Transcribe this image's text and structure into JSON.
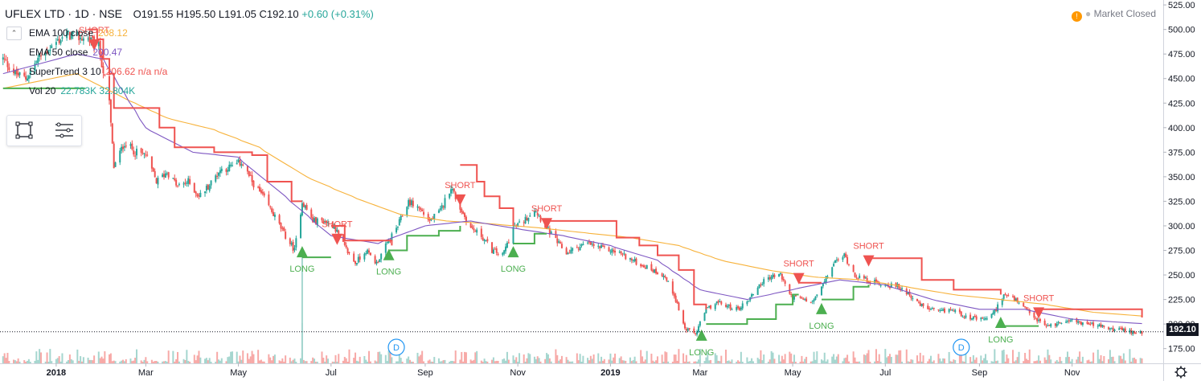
{
  "header": {
    "symbol": "UFLEX LTD · 1D · NSE",
    "ohlc": "O191.55 H195.50 L191.05 C192.10",
    "change": "+0.60 (+0.31%)"
  },
  "legend": [
    {
      "label": "EMA 100 close",
      "value": "208.12",
      "color": "#f7b23b"
    },
    {
      "label": "EMA 50 close",
      "value": "200.47",
      "color": "#7e57c2"
    },
    {
      "label": "SuperTrend 3 10",
      "value": "206.62  n/a  n/a",
      "color": "#ef5350"
    },
    {
      "label": "Vol 20",
      "value": "22.783K  32.804K",
      "color": "#26a69a"
    }
  ],
  "collapse_icon": "chevron-up-icon",
  "toolbox_icons": [
    "rectangle-select-icon",
    "list-lines-icon"
  ],
  "market_status": "Market Closed",
  "market_icon": "exclamation-icon",
  "last_price": "192.10",
  "settings_icon": "gear-icon",
  "colors": {
    "up": "#26a69a",
    "down": "#ef5350",
    "ema100": "#f7b23b",
    "ema50": "#7e57c2",
    "st_long": "#4caf50",
    "st_short": "#ef5350",
    "vol_up": "#a5d6cf",
    "vol_down": "#f7a9a7"
  },
  "chart_data": {
    "type": "candlestick",
    "title": "UFLEX LTD · 1D · NSE",
    "x_tick_labels": [
      "2018",
      "Mar",
      "May",
      "Jul",
      "Sep",
      "Nov",
      "2019",
      "Mar",
      "May",
      "Jul",
      "Sep",
      "Nov"
    ],
    "y_tick_labels": [
      "175.00",
      "200.00",
      "225.00",
      "250.00",
      "275.00",
      "300.00",
      "325.00",
      "350.00",
      "375.00",
      "400.00",
      "425.00",
      "450.00",
      "475.00",
      "500.00",
      "525.00"
    ],
    "ylim": [
      160,
      530
    ],
    "x_range": [
      "2017-11-25",
      "2019-12-31"
    ],
    "close_path": [
      [
        "2017-11-27",
        470
      ],
      [
        "2017-12-05",
        455
      ],
      [
        "2017-12-12",
        450
      ],
      [
        "2017-12-20",
        470
      ],
      [
        "2018-01-01",
        487
      ],
      [
        "2018-01-08",
        495
      ],
      [
        "2018-01-15",
        492
      ],
      [
        "2018-01-22",
        490
      ],
      [
        "2018-01-29",
        482
      ],
      [
        "2018-02-05",
        425
      ],
      [
        "2018-02-08",
        360
      ],
      [
        "2018-02-15",
        385
      ],
      [
        "2018-02-22",
        375
      ],
      [
        "2018-03-01",
        372
      ],
      [
        "2018-03-08",
        345
      ],
      [
        "2018-03-15",
        355
      ],
      [
        "2018-03-22",
        340
      ],
      [
        "2018-03-29",
        345
      ],
      [
        "2018-04-05",
        330
      ],
      [
        "2018-04-12",
        342
      ],
      [
        "2018-04-19",
        357
      ],
      [
        "2018-04-26",
        360
      ],
      [
        "2018-05-03",
        365
      ],
      [
        "2018-05-10",
        345
      ],
      [
        "2018-05-17",
        330
      ],
      [
        "2018-05-24",
        312
      ],
      [
        "2018-05-31",
        292
      ],
      [
        "2018-06-07",
        275
      ],
      [
        "2018-06-12",
        325
      ],
      [
        "2018-06-19",
        305
      ],
      [
        "2018-06-26",
        305
      ],
      [
        "2018-07-03",
        300
      ],
      [
        "2018-07-10",
        278
      ],
      [
        "2018-07-17",
        262
      ],
      [
        "2018-07-24",
        275
      ],
      [
        "2018-07-31",
        262
      ],
      [
        "2018-08-07",
        282
      ],
      [
        "2018-08-14",
        300
      ],
      [
        "2018-08-21",
        325
      ],
      [
        "2018-08-28",
        318
      ],
      [
        "2018-09-04",
        305
      ],
      [
        "2018-09-11",
        315
      ],
      [
        "2018-09-18",
        340
      ],
      [
        "2018-09-24",
        318
      ],
      [
        "2018-10-01",
        298
      ],
      [
        "2018-10-08",
        290
      ],
      [
        "2018-10-15",
        275
      ],
      [
        "2018-10-22",
        270
      ],
      [
        "2018-10-29",
        298
      ],
      [
        "2018-11-05",
        305
      ],
      [
        "2018-11-12",
        318
      ],
      [
        "2018-11-19",
        300
      ],
      [
        "2018-11-26",
        285
      ],
      [
        "2018-12-03",
        272
      ],
      [
        "2018-12-10",
        278
      ],
      [
        "2018-12-17",
        282
      ],
      [
        "2018-12-24",
        278
      ],
      [
        "2019-01-01",
        275
      ],
      [
        "2019-01-08",
        272
      ],
      [
        "2019-01-15",
        265
      ],
      [
        "2019-01-22",
        260
      ],
      [
        "2019-01-29",
        255
      ],
      [
        "2019-02-05",
        250
      ],
      [
        "2019-02-12",
        230
      ],
      [
        "2019-02-19",
        195
      ],
      [
        "2019-02-26",
        190
      ],
      [
        "2019-03-05",
        215
      ],
      [
        "2019-03-12",
        222
      ],
      [
        "2019-03-19",
        218
      ],
      [
        "2019-03-26",
        215
      ],
      [
        "2019-04-02",
        225
      ],
      [
        "2019-04-09",
        240
      ],
      [
        "2019-04-16",
        248
      ],
      [
        "2019-04-23",
        250
      ],
      [
        "2019-04-30",
        228
      ],
      [
        "2019-05-07",
        225
      ],
      [
        "2019-05-14",
        222
      ],
      [
        "2019-05-21",
        240
      ],
      [
        "2019-05-28",
        262
      ],
      [
        "2019-06-04",
        270
      ],
      [
        "2019-06-11",
        250
      ],
      [
        "2019-06-18",
        245
      ],
      [
        "2019-06-25",
        242
      ],
      [
        "2019-07-02",
        240
      ],
      [
        "2019-07-09",
        238
      ],
      [
        "2019-07-16",
        232
      ],
      [
        "2019-07-23",
        220
      ],
      [
        "2019-07-30",
        215
      ],
      [
        "2019-08-06",
        212
      ],
      [
        "2019-08-13",
        215
      ],
      [
        "2019-08-20",
        210
      ],
      [
        "2019-08-27",
        206
      ],
      [
        "2019-09-03",
        204
      ],
      [
        "2019-09-10",
        210
      ],
      [
        "2019-09-17",
        230
      ],
      [
        "2019-09-24",
        225
      ],
      [
        "2019-10-01",
        215
      ],
      [
        "2019-10-08",
        205
      ],
      [
        "2019-10-15",
        198
      ],
      [
        "2019-10-22",
        200
      ],
      [
        "2019-10-29",
        205
      ],
      [
        "2019-11-05",
        202
      ],
      [
        "2019-11-12",
        200
      ],
      [
        "2019-11-19",
        198
      ],
      [
        "2019-11-26",
        195
      ],
      [
        "2019-12-03",
        194
      ],
      [
        "2019-12-10",
        192
      ],
      [
        "2019-12-17",
        192
      ]
    ],
    "ema100_path": [
      [
        "2017-11-27",
        440
      ],
      [
        "2018-01-15",
        455
      ],
      [
        "2018-02-15",
        430
      ],
      [
        "2018-03-15",
        410
      ],
      [
        "2018-04-15",
        398
      ],
      [
        "2018-05-15",
        380
      ],
      [
        "2018-06-15",
        350
      ],
      [
        "2018-07-15",
        330
      ],
      [
        "2018-08-15",
        312
      ],
      [
        "2018-09-15",
        305
      ],
      [
        "2018-10-15",
        302
      ],
      [
        "2018-11-15",
        298
      ],
      [
        "2018-12-15",
        293
      ],
      [
        "2019-01-15",
        288
      ],
      [
        "2019-02-15",
        280
      ],
      [
        "2019-03-15",
        265
      ],
      [
        "2019-04-15",
        255
      ],
      [
        "2019-05-15",
        248
      ],
      [
        "2019-06-15",
        245
      ],
      [
        "2019-07-15",
        238
      ],
      [
        "2019-08-15",
        230
      ],
      [
        "2019-09-15",
        225
      ],
      [
        "2019-10-15",
        220
      ],
      [
        "2019-11-15",
        212
      ],
      [
        "2019-12-17",
        208.12
      ]
    ],
    "ema50_path": [
      [
        "2017-11-27",
        455
      ],
      [
        "2018-01-15",
        475
      ],
      [
        "2018-02-01",
        470
      ],
      [
        "2018-03-01",
        400
      ],
      [
        "2018-04-01",
        375
      ],
      [
        "2018-05-01",
        370
      ],
      [
        "2018-06-01",
        330
      ],
      [
        "2018-07-01",
        290
      ],
      [
        "2018-08-01",
        282
      ],
      [
        "2018-09-01",
        300
      ],
      [
        "2018-10-01",
        305
      ],
      [
        "2018-11-01",
        297
      ],
      [
        "2018-12-01",
        290
      ],
      [
        "2019-01-01",
        280
      ],
      [
        "2019-02-01",
        265
      ],
      [
        "2019-03-01",
        235
      ],
      [
        "2019-04-01",
        225
      ],
      [
        "2019-05-01",
        235
      ],
      [
        "2019-06-01",
        245
      ],
      [
        "2019-07-01",
        240
      ],
      [
        "2019-08-01",
        225
      ],
      [
        "2019-09-01",
        215
      ],
      [
        "2019-10-01",
        215
      ],
      [
        "2019-11-01",
        205
      ],
      [
        "2019-12-17",
        200.47
      ]
    ],
    "supertrend_segments": [
      {
        "dir": "long",
        "points": [
          [
            "2017-11-27",
            440
          ],
          [
            "2018-01-20",
            440
          ]
        ]
      },
      {
        "dir": "short",
        "points": [
          [
            "2018-01-22",
            500
          ],
          [
            "2018-01-28",
            490
          ],
          [
            "2018-02-01",
            470
          ],
          [
            "2018-02-05",
            455
          ],
          [
            "2018-02-08",
            420
          ],
          [
            "2018-03-10",
            400
          ],
          [
            "2018-03-20",
            380
          ],
          [
            "2018-04-15",
            375
          ],
          [
            "2018-05-10",
            372
          ],
          [
            "2018-05-20",
            345
          ],
          [
            "2018-06-05",
            325
          ],
          [
            "2018-06-12",
            325
          ]
        ]
      },
      {
        "dir": "long",
        "points": [
          [
            "2018-06-12",
            268
          ],
          [
            "2018-07-01",
            268
          ]
        ]
      },
      {
        "dir": "short",
        "points": [
          [
            "2018-07-01",
            300
          ],
          [
            "2018-07-10",
            285
          ],
          [
            "2018-08-10",
            280
          ]
        ]
      },
      {
        "dir": "long",
        "points": [
          [
            "2018-08-08",
            275
          ],
          [
            "2018-08-20",
            290
          ],
          [
            "2018-09-10",
            295
          ],
          [
            "2018-09-24",
            300
          ]
        ]
      },
      {
        "dir": "short",
        "points": [
          [
            "2018-09-24",
            362
          ],
          [
            "2018-10-05",
            345
          ],
          [
            "2018-10-10",
            330
          ],
          [
            "2018-10-20",
            318
          ],
          [
            "2018-10-29",
            300
          ]
        ]
      },
      {
        "dir": "long",
        "points": [
          [
            "2018-10-29",
            282
          ],
          [
            "2018-11-12",
            292
          ],
          [
            "2018-11-20",
            292
          ]
        ]
      },
      {
        "dir": "short",
        "points": [
          [
            "2018-11-20",
            305
          ],
          [
            "2018-12-20",
            305
          ],
          [
            "2019-01-05",
            288
          ],
          [
            "2019-01-20",
            280
          ],
          [
            "2019-02-01",
            270
          ],
          [
            "2019-02-15",
            255
          ],
          [
            "2019-02-25",
            220
          ],
          [
            "2019-03-05",
            215
          ]
        ]
      },
      {
        "dir": "long",
        "points": [
          [
            "2019-03-05",
            200
          ],
          [
            "2019-04-01",
            205
          ],
          [
            "2019-04-20",
            220
          ],
          [
            "2019-05-01",
            230
          ],
          [
            "2019-05-05",
            230
          ]
        ]
      },
      {
        "dir": "short",
        "points": [
          [
            "2019-05-05",
            242
          ],
          [
            "2019-05-20",
            242
          ]
        ]
      },
      {
        "dir": "long",
        "points": [
          [
            "2019-05-20",
            225
          ],
          [
            "2019-06-10",
            238
          ],
          [
            "2019-06-20",
            240
          ]
        ]
      },
      {
        "dir": "short",
        "points": [
          [
            "2019-06-20",
            267
          ],
          [
            "2019-07-15",
            267
          ],
          [
            "2019-07-25",
            245
          ],
          [
            "2019-08-15",
            235
          ],
          [
            "2019-09-15",
            230
          ]
        ]
      },
      {
        "dir": "long",
        "points": [
          [
            "2019-09-15",
            198
          ],
          [
            "2019-10-10",
            198
          ]
        ]
      },
      {
        "dir": "short",
        "points": [
          [
            "2019-10-10",
            215
          ],
          [
            "2019-12-17",
            206.62
          ]
        ]
      }
    ],
    "signals": [
      {
        "type": "SHORT",
        "date": "2018-01-26",
        "price": 490
      },
      {
        "type": "LONG",
        "date": "2018-06-12",
        "price": 268
      },
      {
        "type": "SHORT",
        "date": "2018-07-05",
        "price": 292
      },
      {
        "type": "LONG",
        "date": "2018-08-08",
        "price": 265
      },
      {
        "type": "SHORT",
        "date": "2018-09-24",
        "price": 332
      },
      {
        "type": "LONG",
        "date": "2018-10-29",
        "price": 268
      },
      {
        "type": "SHORT",
        "date": "2018-11-20",
        "price": 308
      },
      {
        "type": "LONG",
        "date": "2019-03-02",
        "price": 183
      },
      {
        "type": "SHORT",
        "date": "2019-05-05",
        "price": 252
      },
      {
        "type": "LONG",
        "date": "2019-05-20",
        "price": 210
      },
      {
        "type": "SHORT",
        "date": "2019-06-20",
        "price": 270
      },
      {
        "type": "LONG",
        "date": "2019-09-15",
        "price": 196
      },
      {
        "type": "SHORT",
        "date": "2019-10-10",
        "price": 217
      }
    ],
    "dividend_markers": [
      {
        "label": "D",
        "date": "2018-08-13"
      },
      {
        "label": "D",
        "date": "2019-08-20"
      }
    ]
  }
}
